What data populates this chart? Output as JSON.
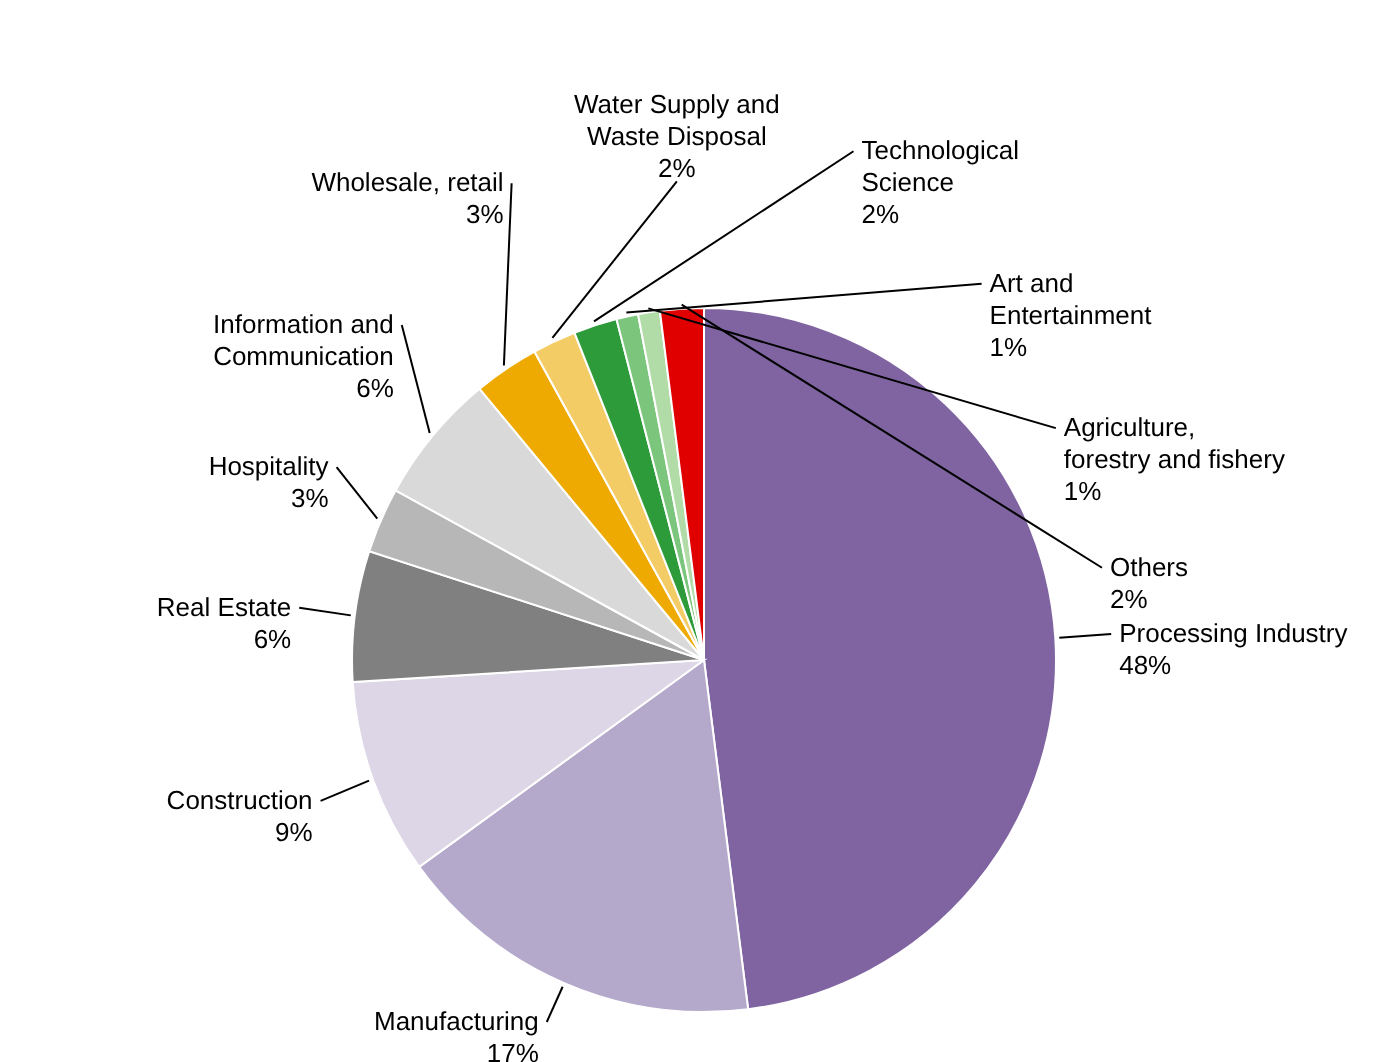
{
  "chart_data": {
    "type": "pie",
    "categories": [
      "Processing Industry",
      "Manufacturing",
      "Construction",
      "Real Estate",
      "Hospitality",
      "Information and Communication",
      "Wholesale, retail",
      "Water Supply and Waste Disposal",
      "Technological Science",
      "Art and Entertainment",
      "Agriculture, forestry and fishery",
      "Others"
    ],
    "values": [
      48,
      17,
      9,
      6,
      3,
      6,
      3,
      2,
      2,
      1,
      1,
      2
    ],
    "value_labels": [
      "48%",
      "17%",
      "9%",
      "6%",
      "3%",
      "6%",
      "3%",
      "2%",
      "2%",
      "1%",
      "1%",
      "2%"
    ],
    "colors": [
      "#8064a2",
      "#b4a9cb",
      "#dcd6e6",
      "#808080",
      "#b7b7b7",
      "#d9d9d9",
      "#eeaa00",
      "#f4cc66",
      "#2e9b3a",
      "#7cc57c",
      "#b1dca7",
      "#e00000"
    ]
  }
}
